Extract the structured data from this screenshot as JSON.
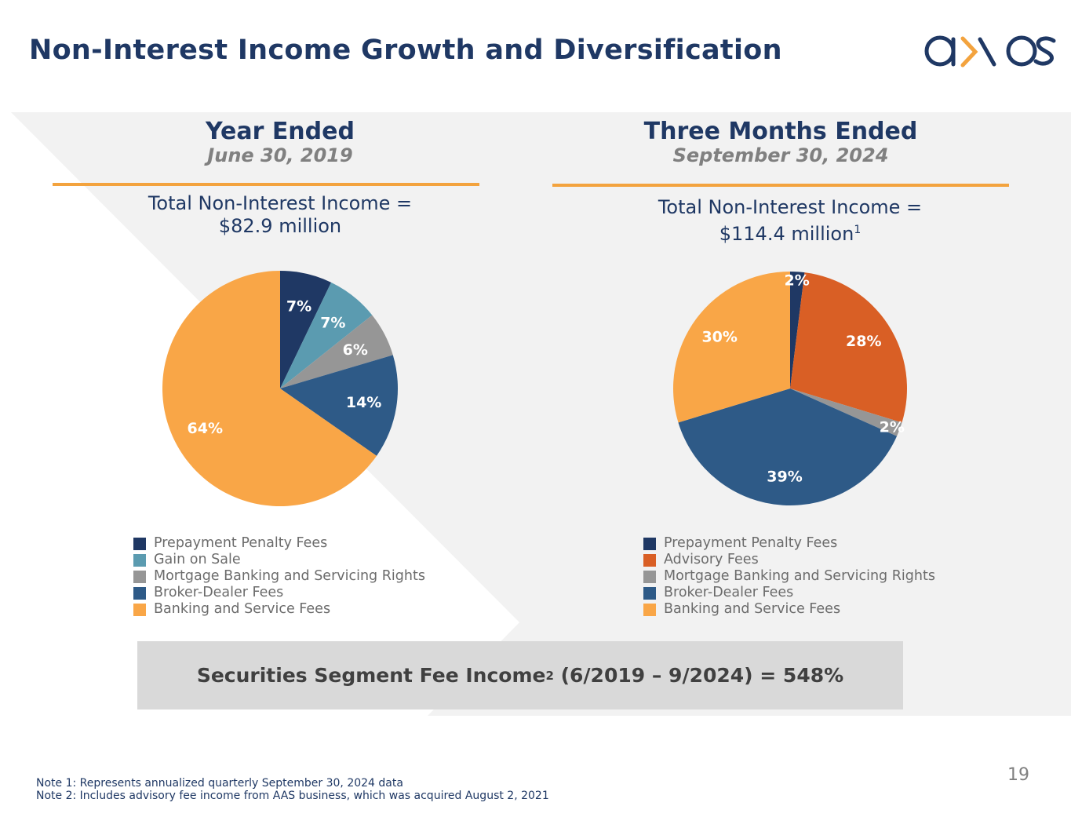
{
  "title": "Non-Interest Income Growth and Diversification",
  "logo": "axos",
  "page_number": "19",
  "banner": {
    "prefix": "Securities Segment Fee Income",
    "sup": "2",
    "suffix": " (6/2019 – 9/2024) = 548%"
  },
  "notes": [
    "Note 1: Represents annualized quarterly September 30, 2024 data",
    "Note 2: Includes advisory fee income from AAS business, which was acquired August 2, 2021"
  ],
  "chart_data": [
    {
      "type": "pie",
      "title": "Year Ended",
      "subtitle": "June 30, 2019",
      "total_line1": "Total Non-Interest Income =",
      "total_line2": "$82.9 million",
      "total_sup": "",
      "categories": [
        "Prepayment Penalty Fees",
        "Gain on Sale",
        "Mortgage Banking and Servicing Rights",
        "Broker-Dealer Fees",
        "Banking and Service Fees"
      ],
      "values": [
        7,
        7,
        6,
        14,
        64
      ],
      "labels": [
        "7%",
        "7%",
        "6%",
        "14%",
        "64%"
      ],
      "colors": [
        "#1f3864",
        "#5b9bb0",
        "#969696",
        "#2e5a87",
        "#f9a647"
      ],
      "legend": "bottom"
    },
    {
      "type": "pie",
      "title": "Three Months Ended",
      "subtitle": "September 30, 2024",
      "total_line1": "Total Non-Interest Income =",
      "total_line2": "$114.4 million",
      "total_sup": "1",
      "categories": [
        "Prepayment Penalty Fees",
        "Advisory Fees",
        "Mortgage Banking and Servicing Rights",
        "Broker-Dealer Fees",
        "Banking and Service Fees"
      ],
      "values": [
        2,
        28,
        2,
        39,
        30
      ],
      "labels": [
        "2%",
        "28%",
        "2%",
        "39%",
        "30%"
      ],
      "colors": [
        "#1f3864",
        "#d95f25",
        "#969696",
        "#2e5a87",
        "#f9a647"
      ],
      "legend": "bottom"
    }
  ]
}
